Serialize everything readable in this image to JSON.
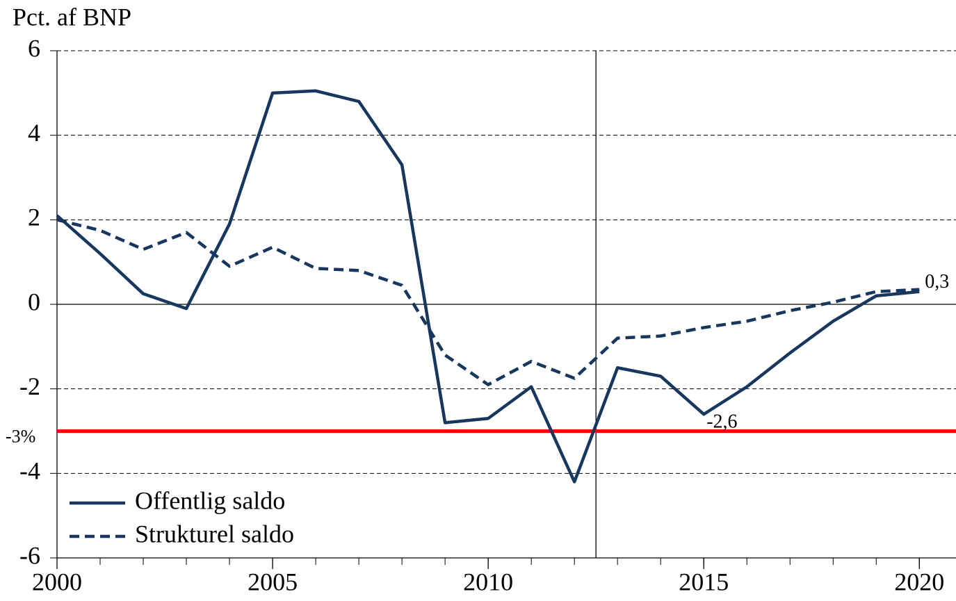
{
  "chart_data": {
    "type": "line",
    "y_axis_label": "Pct. af BNP",
    "x": [
      2000,
      2001,
      2002,
      2003,
      2004,
      2005,
      2006,
      2007,
      2008,
      2009,
      2010,
      2011,
      2012,
      2013,
      2014,
      2015,
      2016,
      2017,
      2018,
      2019,
      2020
    ],
    "series": [
      {
        "name": "Offentlig saldo",
        "color": "#17375e",
        "style": "solid",
        "values": [
          2.1,
          1.2,
          0.25,
          -0.1,
          1.9,
          5.0,
          5.05,
          4.8,
          3.3,
          -2.8,
          -2.7,
          -1.95,
          -4.2,
          -1.5,
          -1.7,
          -2.6,
          -1.95,
          -1.15,
          -0.4,
          0.2,
          0.3
        ],
        "value_labels": [
          null,
          null,
          null,
          null,
          null,
          null,
          null,
          null,
          null,
          null,
          null,
          null,
          null,
          null,
          null,
          "-2,6",
          null,
          null,
          null,
          null,
          "0,3"
        ]
      },
      {
        "name": "Strukturel saldo",
        "color": "#17375e",
        "style": "dashed",
        "values": [
          2.0,
          1.75,
          1.3,
          1.7,
          0.9,
          1.35,
          0.85,
          0.8,
          0.45,
          -1.2,
          -1.9,
          -1.35,
          -1.75,
          -0.8,
          -0.75,
          -0.55,
          -0.4,
          -0.15,
          0.05,
          0.3,
          0.35
        ]
      }
    ],
    "reference_line": {
      "value": -3,
      "label": "-3%",
      "color": "#ff0000"
    },
    "vertical_line": 2012.5,
    "xlim": [
      2000,
      2020.85
    ],
    "xticks": [
      2000,
      2005,
      2010,
      2015,
      2020
    ],
    "ylim": [
      -6,
      6
    ],
    "yticks": [
      -6,
      -4,
      -2,
      0,
      2,
      4,
      6
    ],
    "grid": true,
    "legend": "lower left"
  }
}
